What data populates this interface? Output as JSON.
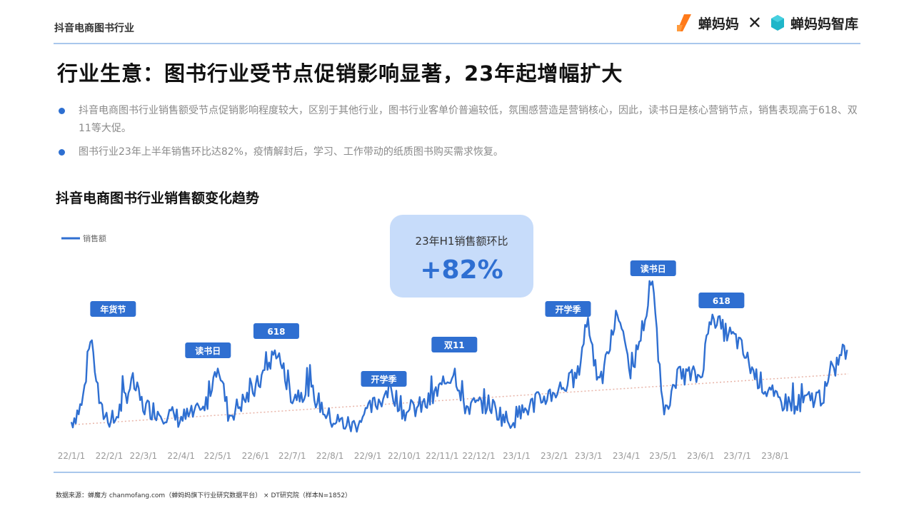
{
  "header": {
    "section_title": "抖音电商图书行业",
    "brand1": "蝉妈妈",
    "brand_sep": "✕",
    "brand2": "蝉妈妈智库"
  },
  "main_title": "行业生意：图书行业受节点促销影响显著，23年起增幅扩大",
  "bullets": [
    "抖音电商图书行业销售额受节点促销影响程度较大，区别于其他行业，图书行业客单价普遍较低，氛围感营造是营销核心，因此，读书日是核心营销节点，销售表现高于618、双11等大促。",
    "图书行业23年上半年销售环比达82%，疫情解封后，学习、工作带动的纸质图书购买需求恢复。"
  ],
  "chart_title": "抖音电商图书行业销售额变化趋势",
  "callout": {
    "label": "23年H1销售额环比",
    "value": "+82%"
  },
  "source": "数据来源：蝉魔方 chanmofang.com（蝉妈妈旗下行业研究数据平台） × DT研究院（样本N=1852）",
  "colors": {
    "line": "#2f6fd1",
    "trend": "#e8b4a8",
    "tag_bg": "#2f6fd1",
    "tag_text": "#ffffff",
    "callout_bg": "#c7dcfa",
    "rule": "#a9c7ec"
  },
  "chart_data": {
    "type": "line",
    "series": [
      {
        "name": "销售额",
        "x_start": "2022-01-01",
        "x_end": "2023-09-30",
        "keypoints": [
          [
            "2022-01-01",
            8
          ],
          [
            "2022-01-10",
            20
          ],
          [
            "2022-01-17",
            65
          ],
          [
            "2022-01-25",
            15
          ],
          [
            "2022-02-05",
            8
          ],
          [
            "2022-02-20",
            35
          ],
          [
            "2022-03-01",
            18
          ],
          [
            "2022-04-01",
            10
          ],
          [
            "2022-04-20",
            15
          ],
          [
            "2022-05-01",
            48
          ],
          [
            "2022-05-10",
            12
          ],
          [
            "2022-06-01",
            30
          ],
          [
            "2022-06-18",
            56
          ],
          [
            "2022-07-01",
            25
          ],
          [
            "2022-07-15",
            30
          ],
          [
            "2022-08-01",
            10
          ],
          [
            "2022-08-20",
            5
          ],
          [
            "2022-09-10",
            22
          ],
          [
            "2022-09-20",
            30
          ],
          [
            "2022-10-01",
            14
          ],
          [
            "2022-10-20",
            20
          ],
          [
            "2022-11-11",
            42
          ],
          [
            "2022-11-20",
            18
          ],
          [
            "2022-12-10",
            20
          ],
          [
            "2022-12-25",
            8
          ],
          [
            "2023-01-15",
            20
          ],
          [
            "2023-02-01",
            28
          ],
          [
            "2023-02-20",
            38
          ],
          [
            "2023-02-28",
            78
          ],
          [
            "2023-03-10",
            30
          ],
          [
            "2023-03-25",
            82
          ],
          [
            "2023-04-05",
            40
          ],
          [
            "2023-04-23",
            100
          ],
          [
            "2023-05-01",
            15
          ],
          [
            "2023-05-15",
            40
          ],
          [
            "2023-06-01",
            38
          ],
          [
            "2023-06-10",
            82
          ],
          [
            "2023-06-18",
            70
          ],
          [
            "2023-07-01",
            62
          ],
          [
            "2023-07-15",
            40
          ],
          [
            "2023-08-01",
            22
          ],
          [
            "2023-08-20",
            20
          ],
          [
            "2023-09-10",
            26
          ],
          [
            "2023-09-25",
            55
          ]
        ]
      },
      {
        "name": "trend",
        "style": "dotted",
        "keypoints": [
          [
            "2022-01-01",
            6
          ],
          [
            "2023-09-30",
            40
          ]
        ]
      }
    ],
    "x_ticks": [
      "22/1/1",
      "22/2/1",
      "22/3/1",
      "22/4/1",
      "22/5/1",
      "22/6/1",
      "22/7/1",
      "22/8/1",
      "22/9/1",
      "22/10/1",
      "22/11/1",
      "22/12/1",
      "23/1/1",
      "23/2/1",
      "23/3/1",
      "23/4/1",
      "23/5/1",
      "23/6/1",
      "23/7/1",
      "23/8/1"
    ],
    "legend": {
      "label": "销售额",
      "position": "top-left"
    },
    "annotations": [
      {
        "text": "年货节",
        "x": "2022-01-17"
      },
      {
        "text": "读书日",
        "x": "2022-04-23"
      },
      {
        "text": "618",
        "x": "2022-06-18"
      },
      {
        "text": "开学季",
        "x": "2022-09-20"
      },
      {
        "text": "双11",
        "x": "2022-11-11"
      },
      {
        "text": "开学季",
        "x": "2023-02-28"
      },
      {
        "text": "读书日",
        "x": "2023-04-23"
      },
      {
        "text": "618",
        "x": "2023-06-18"
      }
    ],
    "grid": false
  }
}
